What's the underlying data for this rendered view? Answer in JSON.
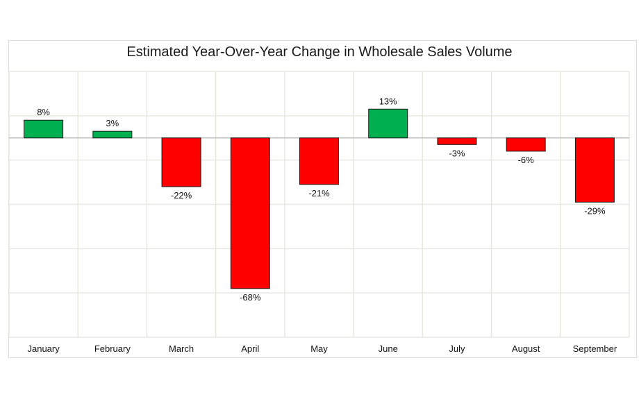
{
  "chart_data": {
    "type": "bar",
    "title": "Estimated Year-Over-Year Change in Wholesale Sales Volume",
    "categories": [
      "January",
      "February",
      "March",
      "April",
      "May",
      "June",
      "July",
      "August",
      "September"
    ],
    "values": [
      8,
      3,
      -22,
      -68,
      -21,
      13,
      -3,
      -6,
      -29
    ],
    "data_labels": [
      "8%",
      "3%",
      "-22%",
      "-68%",
      "-21%",
      "13%",
      "-3%",
      "-6%",
      "-29%"
    ],
    "unit": "%",
    "xlabel": "",
    "ylabel": "",
    "ylim": [
      -90,
      30
    ],
    "y_gridlines": [
      30,
      10,
      -10,
      -30,
      -50,
      -70,
      -90
    ],
    "y_tick_labels_shown": false,
    "grid": true,
    "colors": {
      "positive": "#00b050",
      "negative": "#ff0000",
      "bar_border": "#1a1a1a",
      "grid": "#e8e8e0",
      "zero_line": "#bfbfbf"
    }
  }
}
